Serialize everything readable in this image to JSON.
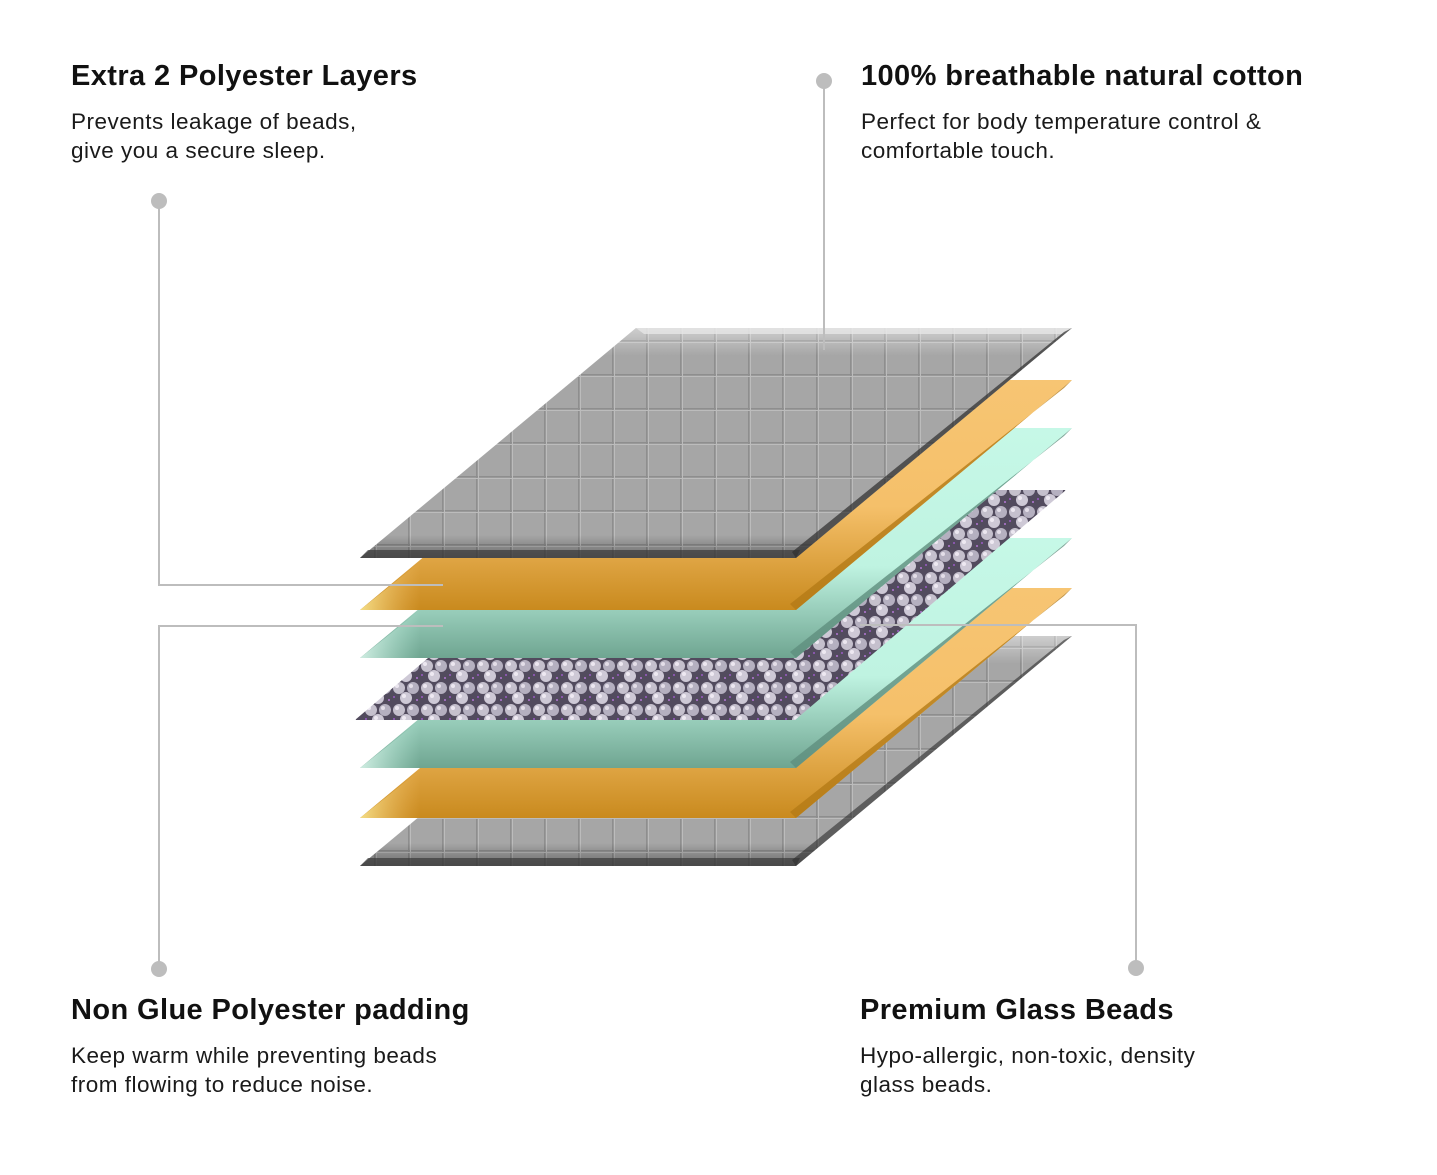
{
  "callouts": {
    "top_left": {
      "title": "Extra 2 Polyester Layers",
      "lines": [
        "Prevents leakage of beads,",
        "give you a secure sleep."
      ]
    },
    "top_right": {
      "title": "100% breathable natural cotton",
      "lines": [
        "Perfect for body temperature control &",
        "comfortable touch."
      ]
    },
    "bottom_left": {
      "title": "Non Glue Polyester padding",
      "lines": [
        "Keep warm while preventing beads",
        "from flowing to reduce noise."
      ]
    },
    "bottom_right": {
      "title": "Premium Glass Beads",
      "lines": [
        "Hypo-allergic, non-toxic, density",
        "glass beads."
      ]
    }
  },
  "layers": [
    {
      "material": "cotton",
      "color": "#a9a9a9"
    },
    {
      "material": "polyester",
      "color": "#f6c36f"
    },
    {
      "material": "padding",
      "color": "#c3f7e6"
    },
    {
      "material": "glass-beads",
      "color": "#b8b8c8"
    },
    {
      "material": "padding",
      "color": "#c3f7e6"
    },
    {
      "material": "polyester",
      "color": "#f6c36f"
    },
    {
      "material": "cotton",
      "color": "#a9a9a9"
    }
  ],
  "colors": {
    "connector": "#bdbdbd",
    "text": "#111111"
  }
}
